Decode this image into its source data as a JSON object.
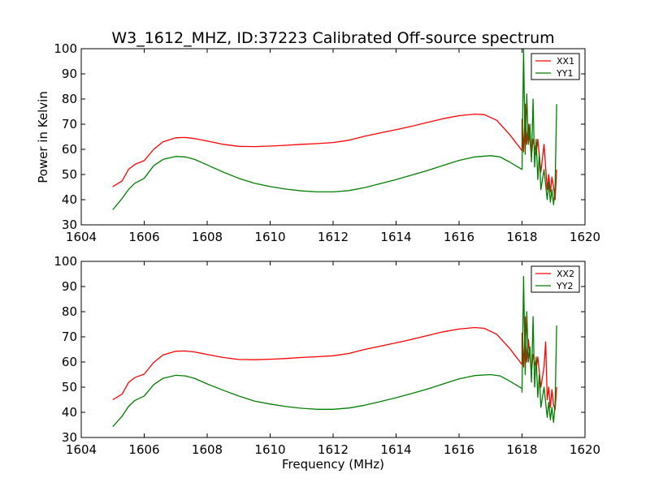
{
  "title": "W3_1612_MHZ, ID:37223 Calibrated Off-source spectrum",
  "xlabel": "Frequency (MHz)",
  "colors": {
    "red": "#ff0000",
    "green": "#007f00"
  },
  "chart_data": [
    {
      "type": "line",
      "xlim": [
        1604,
        1620
      ],
      "ylim": [
        30,
        100
      ],
      "ylabel": "Power in Kelvin",
      "x_ticks": [
        1604,
        1606,
        1608,
        1610,
        1612,
        1614,
        1616,
        1618,
        1620
      ],
      "y_ticks": [
        30,
        40,
        50,
        60,
        70,
        80,
        90,
        100
      ],
      "legend_position": "top-right",
      "series": [
        {
          "name": "XX1",
          "color": "#ff0000",
          "x": [
            1605.0,
            1605.3,
            1605.5,
            1605.7,
            1606.0,
            1606.3,
            1606.6,
            1607.0,
            1607.3,
            1607.6,
            1608.0,
            1608.5,
            1609.0,
            1609.5,
            1610.0,
            1610.5,
            1611.0,
            1611.5,
            1612.0,
            1612.5,
            1613.0,
            1613.5,
            1614.0,
            1614.5,
            1615.0,
            1615.5,
            1616.0,
            1616.5,
            1616.8,
            1617.2,
            1617.6,
            1618.0
          ],
          "y": [
            45.2,
            47.5,
            52.0,
            54.0,
            55.5,
            60.0,
            63.0,
            64.6,
            64.7,
            64.3,
            63.3,
            62.0,
            61.2,
            61.1,
            61.3,
            61.6,
            62.0,
            62.3,
            62.7,
            63.6,
            65.2,
            66.5,
            67.8,
            69.2,
            70.7,
            72.2,
            73.4,
            74.0,
            73.8,
            71.5,
            66.0,
            59.5
          ]
        },
        {
          "name": "YY1",
          "color": "#007f00",
          "x": [
            1605.0,
            1605.3,
            1605.5,
            1605.7,
            1606.0,
            1606.3,
            1606.6,
            1607.0,
            1607.3,
            1607.6,
            1608.0,
            1608.5,
            1609.0,
            1609.5,
            1610.0,
            1610.5,
            1611.0,
            1611.5,
            1612.0,
            1612.5,
            1613.0,
            1613.5,
            1614.0,
            1614.5,
            1615.0,
            1615.5,
            1616.0,
            1616.5,
            1617.0,
            1617.3,
            1617.6,
            1618.0
          ],
          "y": [
            36.0,
            40.5,
            44.0,
            46.5,
            48.5,
            53.5,
            56.0,
            57.2,
            57.0,
            56.0,
            53.8,
            51.0,
            48.5,
            46.5,
            45.2,
            44.2,
            43.5,
            43.1,
            43.1,
            43.6,
            44.8,
            46.4,
            48.0,
            49.8,
            51.6,
            53.6,
            55.6,
            57.0,
            57.5,
            57.0,
            55.0,
            52.0
          ]
        }
      ],
      "noise_region": {
        "XX1": {
          "x": [
            1618.0,
            1618.05,
            1618.1,
            1618.15,
            1618.2,
            1618.3,
            1618.35,
            1618.45,
            1618.5,
            1618.6,
            1618.7,
            1618.8,
            1618.85,
            1618.9,
            1618.95,
            1619.0,
            1619.05,
            1619.1
          ],
          "y": [
            72.0,
            59.0,
            78.0,
            62.0,
            70.0,
            57.0,
            64.0,
            58.0,
            64.0,
            51.0,
            62.0,
            44.0,
            50.0,
            43.0,
            49.0,
            45.0,
            40.0,
            52.0
          ]
        },
        "YY1": {
          "x": [
            1618.0,
            1618.05,
            1618.1,
            1618.15,
            1618.2,
            1618.25,
            1618.3,
            1618.35,
            1618.4,
            1618.45,
            1618.5,
            1618.55,
            1618.6,
            1618.7,
            1618.8,
            1618.85,
            1618.9,
            1618.95,
            1619.0,
            1619.05,
            1619.1
          ],
          "y": [
            52.0,
            100.0,
            58.0,
            82.0,
            62.0,
            70.0,
            55.0,
            80.0,
            53.0,
            64.0,
            48.0,
            58.0,
            44.0,
            52.0,
            40.0,
            47.0,
            39.0,
            44.0,
            38.0,
            45.0,
            78.0
          ]
        }
      }
    },
    {
      "type": "line",
      "xlim": [
        1604,
        1620
      ],
      "ylim": [
        30,
        100
      ],
      "ylabel": "",
      "x_ticks": [
        1604,
        1606,
        1608,
        1610,
        1612,
        1614,
        1616,
        1618,
        1620
      ],
      "y_ticks": [
        30,
        40,
        50,
        60,
        70,
        80,
        90,
        100
      ],
      "legend_position": "top-right",
      "series": [
        {
          "name": "XX2",
          "color": "#ff0000",
          "x": [
            1605.0,
            1605.3,
            1605.5,
            1605.7,
            1606.0,
            1606.3,
            1606.6,
            1607.0,
            1607.3,
            1607.6,
            1608.0,
            1608.5,
            1609.0,
            1609.5,
            1610.0,
            1610.5,
            1611.0,
            1611.5,
            1612.0,
            1612.5,
            1613.0,
            1613.5,
            1614.0,
            1614.5,
            1615.0,
            1615.5,
            1616.0,
            1616.5,
            1616.8,
            1617.2,
            1617.6,
            1618.0
          ],
          "y": [
            45.0,
            47.3,
            51.8,
            53.8,
            55.2,
            59.8,
            62.8,
            64.3,
            64.4,
            64.0,
            63.0,
            61.8,
            61.0,
            60.9,
            61.1,
            61.4,
            61.8,
            62.1,
            62.5,
            63.4,
            65.0,
            66.3,
            67.6,
            69.0,
            70.5,
            72.0,
            73.1,
            73.7,
            73.4,
            71.0,
            65.5,
            59.0
          ]
        },
        {
          "name": "YY2",
          "color": "#007f00",
          "x": [
            1605.0,
            1605.3,
            1605.5,
            1605.7,
            1606.0,
            1606.3,
            1606.6,
            1607.0,
            1607.3,
            1607.6,
            1608.0,
            1608.5,
            1609.0,
            1609.5,
            1610.0,
            1610.5,
            1611.0,
            1611.5,
            1612.0,
            1612.5,
            1613.0,
            1613.5,
            1614.0,
            1614.5,
            1615.0,
            1615.5,
            1616.0,
            1616.5,
            1617.0,
            1617.3,
            1617.6,
            1618.0
          ],
          "y": [
            34.3,
            38.5,
            42.3,
            44.7,
            46.5,
            51.0,
            53.5,
            54.7,
            54.5,
            53.5,
            51.3,
            48.8,
            46.5,
            44.5,
            43.3,
            42.3,
            41.6,
            41.2,
            41.2,
            41.7,
            42.8,
            44.3,
            45.8,
            47.5,
            49.3,
            51.3,
            53.3,
            54.6,
            55.0,
            54.5,
            52.5,
            49.5
          ]
        }
      ],
      "noise_region": {
        "XX2": {
          "x": [
            1618.0,
            1618.05,
            1618.1,
            1618.15,
            1618.2,
            1618.3,
            1618.35,
            1618.45,
            1618.5,
            1618.6,
            1618.7,
            1618.75,
            1618.8,
            1618.85,
            1618.9,
            1618.95,
            1619.0,
            1619.05,
            1619.1
          ],
          "y": [
            71.5,
            58.0,
            78.0,
            60.0,
            69.0,
            56.0,
            63.0,
            57.0,
            62.0,
            50.0,
            58.0,
            68.0,
            45.0,
            50.0,
            42.0,
            49.0,
            43.0,
            41.0,
            50.0
          ]
        },
        "YY2": {
          "x": [
            1618.0,
            1618.05,
            1618.1,
            1618.15,
            1618.2,
            1618.25,
            1618.3,
            1618.35,
            1618.4,
            1618.45,
            1618.5,
            1618.55,
            1618.6,
            1618.7,
            1618.8,
            1618.85,
            1618.9,
            1618.95,
            1619.0,
            1619.05,
            1619.1
          ],
          "y": [
            48.0,
            94.0,
            55.0,
            80.0,
            60.0,
            66.0,
            52.0,
            78.0,
            50.0,
            62.0,
            46.0,
            55.0,
            42.0,
            50.0,
            38.0,
            44.0,
            37.0,
            42.0,
            36.0,
            43.0,
            74.5
          ]
        }
      }
    }
  ]
}
